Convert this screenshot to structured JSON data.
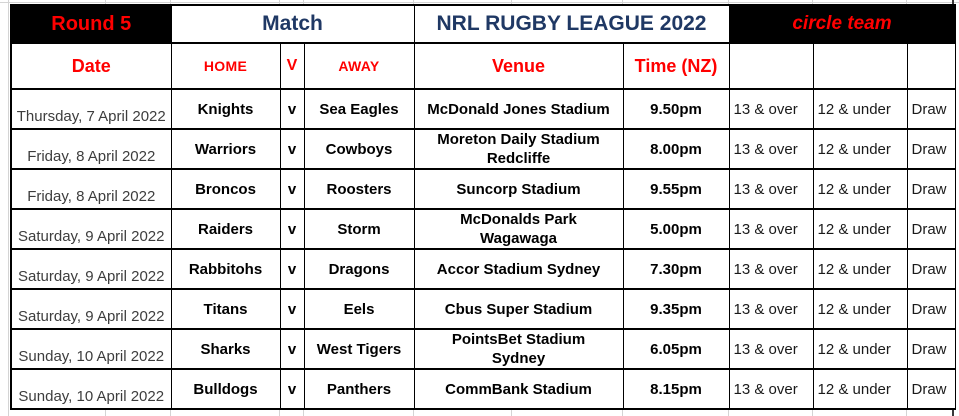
{
  "header": {
    "round": "Round 5",
    "match": "Match",
    "league": "NRL RUGBY LEAGUE 2022",
    "circle_team": "circle team"
  },
  "columns": {
    "date": "Date",
    "home": "HOME",
    "versus": "V",
    "away": "AWAY",
    "venue": "Venue",
    "time": "Time (NZ)"
  },
  "rows": [
    {
      "date": "Thursday, 7 April 2022",
      "home": "Knights",
      "v": "v",
      "away": "Sea Eagles",
      "venue": "McDonald Jones Stadium",
      "time": "9.50pm",
      "age_13": "13 & over",
      "age_12": "12 & under",
      "draw": "Draw"
    },
    {
      "date": "Friday, 8 April 2022",
      "home": "Warriors",
      "v": "v",
      "away": "Cowboys",
      "venue": "Moreton Daily Stadium\nRedcliffe",
      "time": "8.00pm",
      "age_13": "13 & over",
      "age_12": "12 & under",
      "draw": "Draw"
    },
    {
      "date": "Friday, 8 April 2022",
      "home": "Broncos",
      "v": "v",
      "away": "Roosters",
      "venue": "Suncorp Stadium",
      "time": "9.55pm",
      "age_13": "13 & over",
      "age_12": "12 & under",
      "draw": "Draw"
    },
    {
      "date": "Saturday, 9 April 2022",
      "home": "Raiders",
      "v": "v",
      "away": "Storm",
      "venue": "McDonalds Park\nWagawaga",
      "time": "5.00pm",
      "age_13": "13 & over",
      "age_12": "12 & under",
      "draw": "Draw"
    },
    {
      "date": "Saturday, 9 April 2022",
      "home": "Rabbitohs",
      "v": "v",
      "away": "Dragons",
      "venue": "Accor Stadium Sydney",
      "time": "7.30pm",
      "age_13": "13 & over",
      "age_12": "12 & under",
      "draw": "Draw"
    },
    {
      "date": "Saturday, 9 April 2022",
      "home": "Titans",
      "v": "v",
      "away": "Eels",
      "venue": "Cbus Super Stadium",
      "time": "9.35pm",
      "age_13": "13 & over",
      "age_12": "12 & under",
      "draw": "Draw"
    },
    {
      "date": "Sunday, 10 April 2022",
      "home": "Sharks",
      "v": "v",
      "away": "West Tigers",
      "venue": "PointsBet Stadium\nSydney",
      "time": "6.05pm",
      "age_13": "13 & over",
      "age_12": "12 & under",
      "draw": "Draw"
    },
    {
      "date": "Sunday, 10 April 2022",
      "home": "Bulldogs",
      "v": "v",
      "away": "Panthers",
      "venue": "CommBank Stadium",
      "time": "8.15pm",
      "age_13": "13 & over",
      "age_12": "12 & under",
      "draw": "Draw"
    }
  ],
  "colors": {
    "accent_red": "#ff0000",
    "navy": "#1f3864",
    "header_bg": "#000000",
    "date_text": "#3d3d3d",
    "grid_line": "#d4d4d4"
  }
}
